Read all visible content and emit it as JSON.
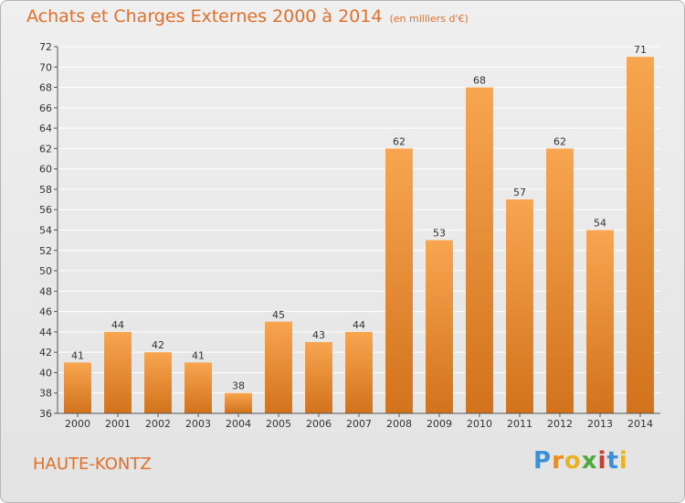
{
  "title": "Achats et Charges Externes 2000 à 2014",
  "unit": "(en milliers d'€)",
  "town": "HAUTE-KONTZ",
  "logo": {
    "text": "Proxiti",
    "letter_colors": [
      "#3a8fd6",
      "#f08a1c",
      "#e8b323",
      "#4caa3c",
      "#d03a2e",
      "#3a8fd6",
      "#e8b323"
    ]
  },
  "colors": {
    "bar_light": "#f8a550",
    "bar_dark": "#d2721c",
    "title": "#e0702c",
    "grid": "#ffffff",
    "axis_text": "#333333"
  },
  "chart_data": {
    "type": "bar",
    "title": "Achats et Charges Externes 2000 à 2014",
    "categories": [
      "2000",
      "2001",
      "2002",
      "2003",
      "2004",
      "2005",
      "2006",
      "2007",
      "2008",
      "2009",
      "2010",
      "2011",
      "2012",
      "2013",
      "2014"
    ],
    "values": [
      41,
      44,
      42,
      41,
      38,
      45,
      43,
      44,
      62,
      53,
      68,
      57,
      62,
      54,
      71
    ],
    "ylim": [
      36,
      72
    ],
    "ytick_step": 2,
    "grid": true,
    "xlabel": "",
    "ylabel": ""
  }
}
